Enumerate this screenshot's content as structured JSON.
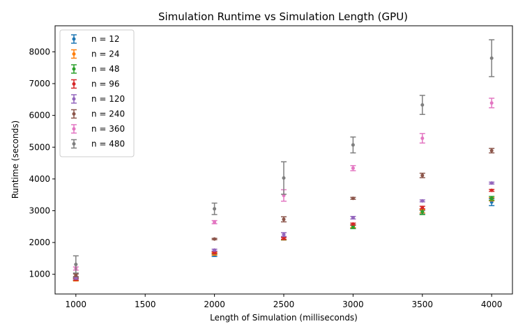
{
  "chart_data": {
    "type": "scatter",
    "title": "Simulation Runtime vs Simulation Length (GPU)",
    "xlabel": "Length of Simulation (milliseconds)",
    "ylabel": "Runtime (seconds)",
    "xlim": [
      850,
      4150
    ],
    "ylim": [
      380,
      8820
    ],
    "xticks": [
      1000,
      1500,
      2000,
      2500,
      3000,
      3500,
      4000
    ],
    "yticks": [
      1000,
      2000,
      3000,
      4000,
      5000,
      6000,
      7000,
      8000
    ],
    "grid": false,
    "legend_position": "top-left",
    "x": [
      1000,
      2000,
      2500,
      3000,
      3500,
      4000
    ],
    "series": [
      {
        "name": "n = 12",
        "color": "#1f77b4",
        "values": [
          850,
          1600,
          2120,
          2490,
          2950,
          3270
        ],
        "errors": [
          40,
          40,
          40,
          50,
          60,
          110
        ]
      },
      {
        "name": "n = 24",
        "color": "#ff7f0e",
        "values": [
          830,
          1640,
          2120,
          2510,
          2980,
          3360
        ],
        "errors": [
          40,
          40,
          40,
          40,
          50,
          50
        ]
      },
      {
        "name": "n = 48",
        "color": "#2ca02c",
        "values": [
          850,
          1680,
          2130,
          2500,
          2970,
          3390
        ],
        "errors": [
          40,
          40,
          40,
          60,
          90,
          60
        ]
      },
      {
        "name": "n = 96",
        "color": "#d62728",
        "values": [
          840,
          1680,
          2130,
          2580,
          3100,
          3640
        ],
        "errors": [
          30,
          30,
          30,
          30,
          40,
          30
        ]
      },
      {
        "name": "n = 120",
        "color": "#9467bd",
        "values": [
          880,
          1760,
          2250,
          2780,
          3310,
          3870
        ],
        "errors": [
          30,
          30,
          60,
          40,
          30,
          30
        ]
      },
      {
        "name": "n = 240",
        "color": "#8c564b",
        "values": [
          970,
          2110,
          2730,
          3390,
          4110,
          4890
        ],
        "errors": [
          40,
          20,
          80,
          30,
          70,
          70
        ]
      },
      {
        "name": "n = 360",
        "color": "#e377c2",
        "values": [
          1180,
          2640,
          3480,
          4340,
          5280,
          6390
        ],
        "errors": [
          50,
          50,
          180,
          80,
          150,
          150
        ]
      },
      {
        "name": "n = 480",
        "color": "#7f7f7f",
        "values": [
          1310,
          3060,
          4030,
          5070,
          6330,
          7800
        ],
        "errors": [
          270,
          180,
          510,
          250,
          300,
          580
        ]
      }
    ]
  }
}
